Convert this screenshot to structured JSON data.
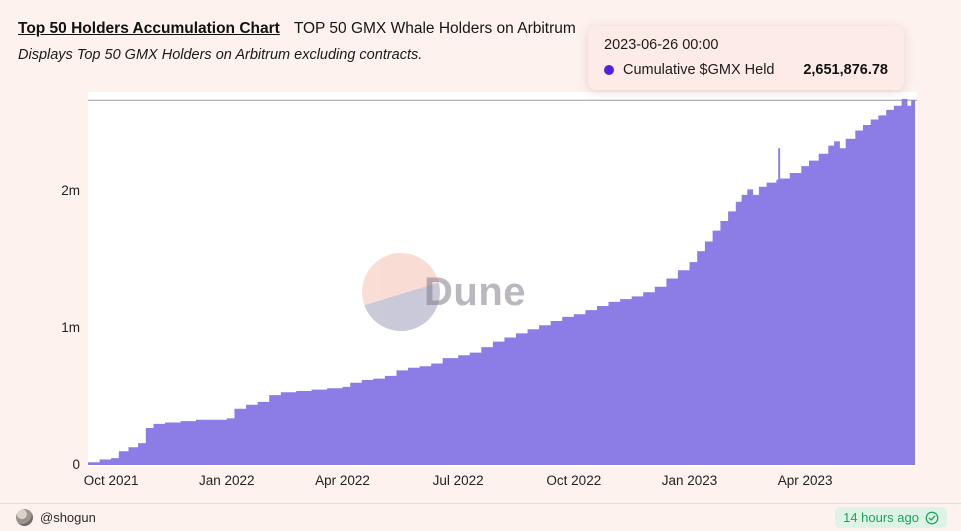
{
  "header": {
    "title": "Top 50 Holders Accumulation Chart",
    "title_suffix": "TOP 50 GMX Whale Holders on Arbitrum",
    "subtitle": "Displays Top 50 GMX Holders on Arbitrum excluding contracts."
  },
  "tooltip": {
    "date": "2023-06-26 00:00",
    "series_label": "Cumulative $GMX Held",
    "value": "2,651,876.78",
    "dot_color": "#4f23e0"
  },
  "watermark": {
    "text": "Dune"
  },
  "footer": {
    "author": "@shogun",
    "timestamp": "14 hours ago",
    "verified_icon": "check-circle",
    "accent_green": "#1ba45c"
  },
  "chart_data": {
    "type": "area",
    "title": "Top 50 Holders Accumulation Chart",
    "subtitle": "Displays Top 50 GMX Holders on Arbitrum excluding contracts.",
    "x_unit": "months since Oct 2021",
    "y_unit": "GMX (millions)",
    "x_domain": [
      -0.6,
      20.9
    ],
    "y_domain": [
      0,
      2.72
    ],
    "grid": "single top gridline at 2.66m",
    "legend_position": "tooltip",
    "latest_point": {
      "date": "2023-06-26 00:00",
      "value": 2651876.78
    },
    "y_ticks": [
      {
        "v": 0,
        "label": "0"
      },
      {
        "v": 1,
        "label": "1m"
      },
      {
        "v": 2,
        "label": "2m"
      }
    ],
    "x_ticks": [
      {
        "t": 0,
        "label": "Oct 2021"
      },
      {
        "t": 3,
        "label": "Jan 2022"
      },
      {
        "t": 6,
        "label": "Apr 2022"
      },
      {
        "t": 9,
        "label": "Jul 2022"
      },
      {
        "t": 12,
        "label": "Oct 2022"
      },
      {
        "t": 15,
        "label": "Jan 2023"
      },
      {
        "t": 18,
        "label": "Apr 2023"
      }
    ],
    "top_gridline_v": 2.66,
    "gridline_color": "#9a9aa0",
    "series": [
      {
        "name": "Cumulative $GMX Held",
        "color": "#8c7ce6",
        "style": "step-area",
        "points": [
          [
            -0.6,
            0.02
          ],
          [
            -0.3,
            0.04
          ],
          [
            0.0,
            0.05
          ],
          [
            0.2,
            0.1
          ],
          [
            0.45,
            0.13
          ],
          [
            0.7,
            0.16
          ],
          [
            0.9,
            0.27
          ],
          [
            1.1,
            0.3
          ],
          [
            1.4,
            0.31
          ],
          [
            1.8,
            0.32
          ],
          [
            2.2,
            0.33
          ],
          [
            2.6,
            0.33
          ],
          [
            3.0,
            0.34
          ],
          [
            3.2,
            0.41
          ],
          [
            3.5,
            0.44
          ],
          [
            3.8,
            0.46
          ],
          [
            4.1,
            0.51
          ],
          [
            4.4,
            0.53
          ],
          [
            4.8,
            0.54
          ],
          [
            5.2,
            0.55
          ],
          [
            5.6,
            0.56
          ],
          [
            6.0,
            0.57
          ],
          [
            6.2,
            0.6
          ],
          [
            6.5,
            0.62
          ],
          [
            6.8,
            0.63
          ],
          [
            7.1,
            0.65
          ],
          [
            7.4,
            0.69
          ],
          [
            7.7,
            0.71
          ],
          [
            8.0,
            0.72
          ],
          [
            8.3,
            0.74
          ],
          [
            8.6,
            0.78
          ],
          [
            9.0,
            0.8
          ],
          [
            9.3,
            0.82
          ],
          [
            9.6,
            0.86
          ],
          [
            9.9,
            0.9
          ],
          [
            10.2,
            0.93
          ],
          [
            10.5,
            0.96
          ],
          [
            10.8,
            0.99
          ],
          [
            11.1,
            1.02
          ],
          [
            11.4,
            1.05
          ],
          [
            11.7,
            1.08
          ],
          [
            12.0,
            1.1
          ],
          [
            12.3,
            1.13
          ],
          [
            12.6,
            1.16
          ],
          [
            12.9,
            1.19
          ],
          [
            13.2,
            1.21
          ],
          [
            13.5,
            1.23
          ],
          [
            13.8,
            1.26
          ],
          [
            14.1,
            1.3
          ],
          [
            14.4,
            1.36
          ],
          [
            14.7,
            1.42
          ],
          [
            15.0,
            1.48
          ],
          [
            15.2,
            1.56
          ],
          [
            15.4,
            1.63
          ],
          [
            15.6,
            1.71
          ],
          [
            15.8,
            1.78
          ],
          [
            16.0,
            1.85
          ],
          [
            16.2,
            1.92
          ],
          [
            16.35,
            1.97
          ],
          [
            16.5,
            2.01
          ],
          [
            16.65,
            1.97
          ],
          [
            16.8,
            2.03
          ],
          [
            17.0,
            2.06
          ],
          [
            17.25,
            2.08
          ],
          [
            17.3,
            2.31
          ],
          [
            17.35,
            2.09
          ],
          [
            17.6,
            2.13
          ],
          [
            17.9,
            2.18
          ],
          [
            18.1,
            2.22
          ],
          [
            18.35,
            2.27
          ],
          [
            18.6,
            2.33
          ],
          [
            18.75,
            2.36
          ],
          [
            18.9,
            2.31
          ],
          [
            19.05,
            2.38
          ],
          [
            19.3,
            2.44
          ],
          [
            19.5,
            2.48
          ],
          [
            19.7,
            2.52
          ],
          [
            19.9,
            2.55
          ],
          [
            20.1,
            2.59
          ],
          [
            20.3,
            2.62
          ],
          [
            20.5,
            2.67
          ],
          [
            20.65,
            2.62
          ],
          [
            20.75,
            2.66
          ],
          [
            20.85,
            2.65
          ]
        ]
      }
    ]
  }
}
